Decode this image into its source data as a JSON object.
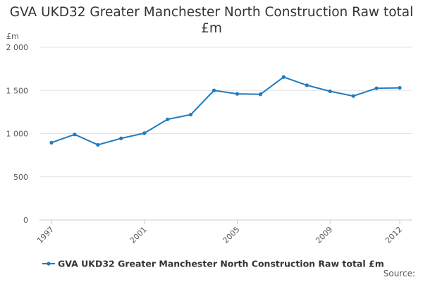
{
  "chart_data": {
    "type": "line",
    "title": "GVA UKD32 Greater Manchester North Construction Raw total £m",
    "ylabel": "£m",
    "xlabel": "",
    "ylim": [
      0,
      2000
    ],
    "yticks": [
      0,
      500,
      1000,
      1500,
      2000
    ],
    "ytick_labels": [
      "0",
      "500",
      "1 000",
      "1 500",
      "2 000"
    ],
    "xtick_labels": [
      "1997",
      "2001",
      "2005",
      "2009",
      "2012"
    ],
    "x": [
      1997,
      1998,
      1999,
      2000,
      2001,
      2002,
      2003,
      2004,
      2005,
      2006,
      2007,
      2008,
      2009,
      2010,
      2011,
      2012
    ],
    "series": [
      {
        "name": "GVA UKD32 Greater Manchester North Construction Raw total £m",
        "color": "#1f7bbf",
        "values": [
          895,
          990,
          870,
          945,
          1005,
          1165,
          1220,
          1500,
          1460,
          1455,
          1655,
          1560,
          1490,
          1435,
          1525,
          1530
        ]
      }
    ],
    "grid": true,
    "legend": "bottom-left"
  },
  "footer": {
    "source_label": "Source:"
  }
}
